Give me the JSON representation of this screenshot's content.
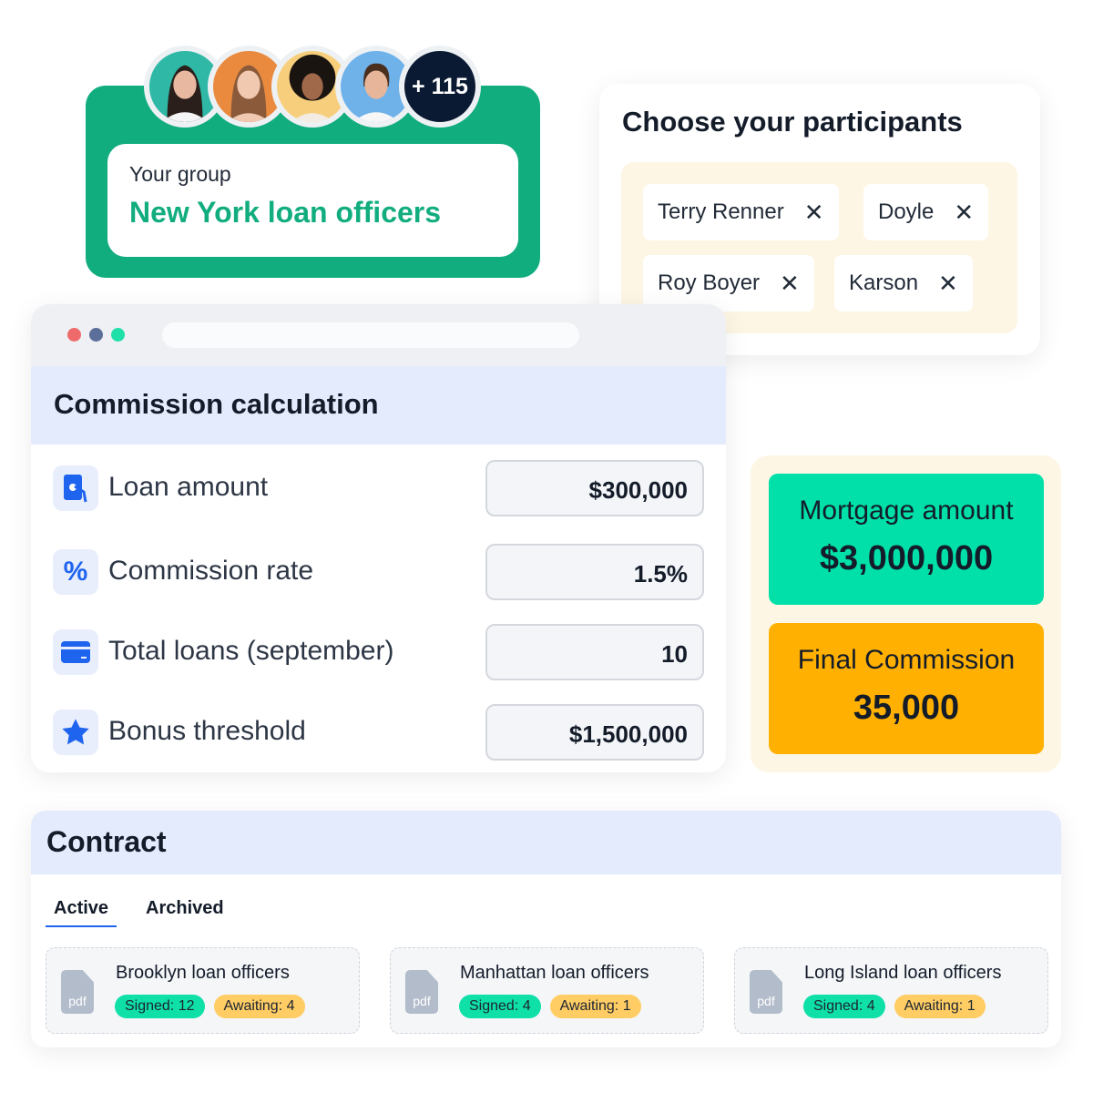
{
  "group": {
    "label": "Your group",
    "name": "New York loan officers",
    "more_count": "+ 115",
    "avatars": [
      {
        "bg": "#2fb8a6"
      },
      {
        "bg": "#e98a3f"
      },
      {
        "bg": "#f7cf7c"
      },
      {
        "bg": "#6fb2ea"
      }
    ]
  },
  "participants": {
    "title": "Choose your participants",
    "chips": [
      "Terry Renner",
      "Doyle",
      "Roy Boyer",
      "Karson"
    ],
    "remove_glyph": "✕"
  },
  "calculation": {
    "title": "Commission calculation",
    "rows": [
      {
        "icon": "hand-money-icon",
        "label": "Loan amount",
        "value": "$300,000"
      },
      {
        "icon": "percent-icon",
        "label": "Commission rate",
        "value": "1.5%"
      },
      {
        "icon": "credit-card-icon",
        "label": "Total loans (september)",
        "value": "10"
      },
      {
        "icon": "star-icon",
        "label": "Bonus threshold",
        "value": "$1,500,000"
      }
    ]
  },
  "results": {
    "mortgage_label": "Mortgage amount",
    "mortgage_value": "$3,000,000",
    "commission_label": "Final Commission",
    "commission_value": "35,000"
  },
  "contract": {
    "title": "Contract",
    "tabs": [
      "Active",
      "Archived"
    ],
    "active_tab": "Active",
    "docs": [
      {
        "title": "Brooklyn loan officers",
        "signed": "Signed: 12",
        "awaiting": "Awaiting: 4"
      },
      {
        "title": "Manhattan loan officers",
        "signed": "Signed: 4",
        "awaiting": "Awaiting: 1"
      },
      {
        "title": "Long Island loan officers",
        "signed": "Signed: 4",
        "awaiting": "Awaiting: 1"
      }
    ],
    "file_type": "pdf"
  },
  "colors": {
    "green": "#12ad7f",
    "mint": "#00e0a8",
    "orange": "#ffb000",
    "blue": "#1f64ef",
    "lavender": "#e4ebfd"
  }
}
